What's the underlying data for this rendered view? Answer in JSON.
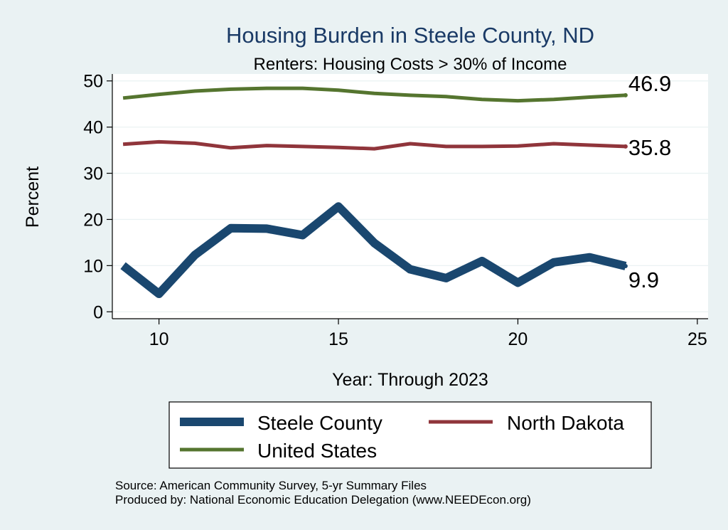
{
  "chart_data": {
    "type": "line",
    "title": "Housing Burden in Steele County, ND",
    "subtitle": "Renters: Housing Costs > 30% of Income",
    "xlabel": "Year: Through 2023",
    "ylabel": "Percent",
    "xlim": [
      8.7,
      25.3
    ],
    "ylim": [
      -1.5,
      51.5
    ],
    "xticks": [
      10,
      15,
      20,
      25
    ],
    "yticks": [
      0,
      10,
      20,
      30,
      40,
      50
    ],
    "grid": true,
    "legend": "bottom",
    "series": [
      {
        "name": "Steele County",
        "color": "#1a476f",
        "x": [
          9,
          10,
          11,
          12,
          13,
          14,
          15,
          16,
          17,
          18,
          19,
          20,
          21,
          22,
          23
        ],
        "values": [
          10.0,
          3.9,
          12.3,
          18.1,
          18.0,
          16.6,
          22.8,
          14.9,
          9.2,
          7.3,
          11.0,
          6.3,
          10.7,
          11.8,
          9.9
        ],
        "end_label": "9.9"
      },
      {
        "name": "North Dakota",
        "color": "#90353b",
        "x": [
          9,
          10,
          11,
          12,
          13,
          14,
          15,
          16,
          17,
          18,
          19,
          20,
          21,
          22,
          23
        ],
        "values": [
          36.3,
          36.8,
          36.5,
          35.5,
          36.0,
          35.8,
          35.6,
          35.3,
          36.4,
          35.8,
          35.8,
          35.9,
          36.4,
          36.1,
          35.8
        ],
        "end_label": "35.8"
      },
      {
        "name": "United States",
        "color": "#55752f",
        "x": [
          9,
          10,
          11,
          12,
          13,
          14,
          15,
          16,
          17,
          18,
          19,
          20,
          21,
          22,
          23
        ],
        "values": [
          46.3,
          47.1,
          47.8,
          48.2,
          48.4,
          48.4,
          48.0,
          47.3,
          46.9,
          46.6,
          46.0,
          45.7,
          46.0,
          46.5,
          46.9
        ],
        "end_label": "46.9"
      }
    ],
    "notes": [
      "Source: American Community Survey, 5-yr Summary Files",
      "Produced by: National Economic Education Delegation (www.NEEDEcon.org)"
    ]
  }
}
